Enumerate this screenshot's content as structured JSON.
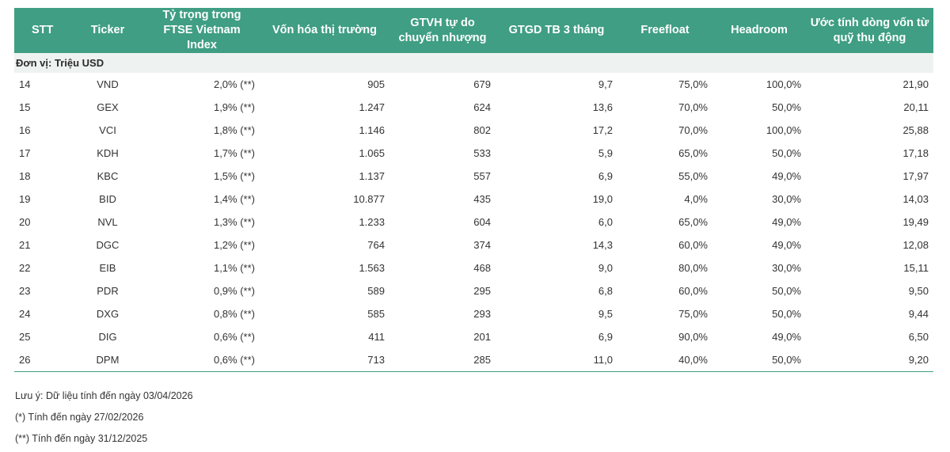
{
  "table": {
    "headers": [
      {
        "key": "stt",
        "label": "STT"
      },
      {
        "key": "ticker",
        "label": "Ticker"
      },
      {
        "key": "weight",
        "label": "Tỷ trọng trong FTSE Vietnam Index"
      },
      {
        "key": "market_cap",
        "label": "Vốn hóa thị trường"
      },
      {
        "key": "gtvh",
        "label": "GTVH tự do chuyển nhượng"
      },
      {
        "key": "gtgd",
        "label": "GTGD TB 3 tháng"
      },
      {
        "key": "freefloat",
        "label": "Freefloat"
      },
      {
        "key": "headroom",
        "label": "Headroom"
      },
      {
        "key": "flow",
        "label": "Ước tính dòng vốn từ quỹ thụ động"
      }
    ],
    "unit": "Đơn vị: Triệu USD",
    "rows": [
      {
        "stt": "14",
        "ticker": "VND",
        "weight": "2,0% (**)",
        "market_cap": "905",
        "gtvh": "679",
        "gtgd": "9,7",
        "freefloat": "75,0%",
        "headroom": "100,0%",
        "flow": "21,90"
      },
      {
        "stt": "15",
        "ticker": "GEX",
        "weight": "1,9% (**)",
        "market_cap": "1.247",
        "gtvh": "624",
        "gtgd": "13,6",
        "freefloat": "70,0%",
        "headroom": "50,0%",
        "flow": "20,11"
      },
      {
        "stt": "16",
        "ticker": "VCI",
        "weight": "1,8% (**)",
        "market_cap": "1.146",
        "gtvh": "802",
        "gtgd": "17,2",
        "freefloat": "70,0%",
        "headroom": "100,0%",
        "flow": "25,88"
      },
      {
        "stt": "17",
        "ticker": "KDH",
        "weight": "1,7% (**)",
        "market_cap": "1.065",
        "gtvh": "533",
        "gtgd": "5,9",
        "freefloat": "65,0%",
        "headroom": "50,0%",
        "flow": "17,18"
      },
      {
        "stt": "18",
        "ticker": "KBC",
        "weight": "1,5% (**)",
        "market_cap": "1.137",
        "gtvh": "557",
        "gtgd": "6,9",
        "freefloat": "55,0%",
        "headroom": "49,0%",
        "flow": "17,97"
      },
      {
        "stt": "19",
        "ticker": "BID",
        "weight": "1,4% (**)",
        "market_cap": "10.877",
        "gtvh": "435",
        "gtgd": "19,0",
        "freefloat": "4,0%",
        "headroom": "30,0%",
        "flow": "14,03"
      },
      {
        "stt": "20",
        "ticker": "NVL",
        "weight": "1,3% (**)",
        "market_cap": "1.233",
        "gtvh": "604",
        "gtgd": "6,0",
        "freefloat": "65,0%",
        "headroom": "49,0%",
        "flow": "19,49"
      },
      {
        "stt": "21",
        "ticker": "DGC",
        "weight": "1,2% (**)",
        "market_cap": "764",
        "gtvh": "374",
        "gtgd": "14,3",
        "freefloat": "60,0%",
        "headroom": "49,0%",
        "flow": "12,08"
      },
      {
        "stt": "22",
        "ticker": "EIB",
        "weight": "1,1% (**)",
        "market_cap": "1.563",
        "gtvh": "468",
        "gtgd": "9,0",
        "freefloat": "80,0%",
        "headroom": "30,0%",
        "flow": "15,11"
      },
      {
        "stt": "23",
        "ticker": "PDR",
        "weight": "0,9% (**)",
        "market_cap": "589",
        "gtvh": "295",
        "gtgd": "6,8",
        "freefloat": "60,0%",
        "headroom": "50,0%",
        "flow": "9,50"
      },
      {
        "stt": "24",
        "ticker": "DXG",
        "weight": "0,8% (**)",
        "market_cap": "585",
        "gtvh": "293",
        "gtgd": "9,5",
        "freefloat": "75,0%",
        "headroom": "50,0%",
        "flow": "9,44"
      },
      {
        "stt": "25",
        "ticker": "DIG",
        "weight": "0,6% (**)",
        "market_cap": "411",
        "gtvh": "201",
        "gtgd": "6,9",
        "freefloat": "90,0%",
        "headroom": "49,0%",
        "flow": "6,50"
      },
      {
        "stt": "26",
        "ticker": "DPM",
        "weight": "0,6% (**)",
        "market_cap": "713",
        "gtvh": "285",
        "gtgd": "11,0",
        "freefloat": "40,0%",
        "headroom": "50,0%",
        "flow": "9,20"
      }
    ]
  },
  "notes": [
    "Lưu ý: Dữ liệu tính đến ngày 03/04/2026",
    "(*) Tính đến ngày 27/02/2026",
    "(**) Tính đến ngày 31/12/2025"
  ],
  "colors": {
    "header_bg": "#3f9e83",
    "unit_row_bg": "#eef2f0"
  }
}
